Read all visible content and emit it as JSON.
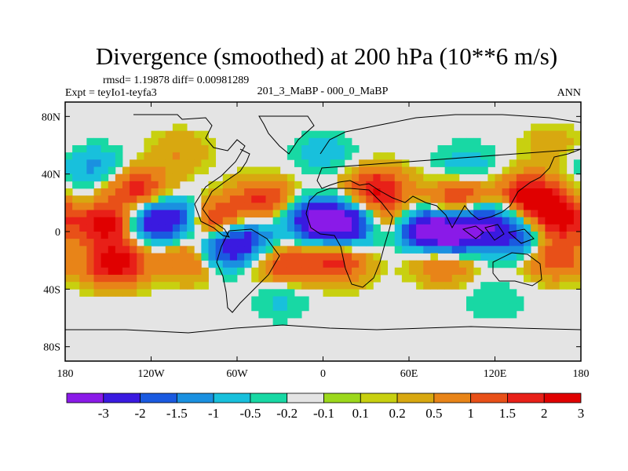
{
  "chart_data": {
    "type": "heatmap",
    "subtype": "filled-contour-map",
    "title": "Divergence (smoothed) at 200 hPa (10**6 m/s)",
    "stats_text": "rmsd= 1.19878 diff= 0.00981289",
    "left_label": "Expt = teyIo1-teyfa3",
    "center_label": "201_3_MaBP - 000_0_MaBP",
    "right_label": "ANN",
    "x_range": [
      -180,
      180
    ],
    "y_range": [
      -90,
      90
    ],
    "x_ticks": [
      {
        "value": -180,
        "label": "180"
      },
      {
        "value": -120,
        "label": "120W"
      },
      {
        "value": -60,
        "label": "60W"
      },
      {
        "value": 0,
        "label": "0"
      },
      {
        "value": 60,
        "label": "60E"
      },
      {
        "value": 120,
        "label": "120E"
      },
      {
        "value": 180,
        "label": "180"
      }
    ],
    "y_ticks": [
      {
        "value": 80,
        "label": "80N"
      },
      {
        "value": 40,
        "label": "40N"
      },
      {
        "value": 0,
        "label": "0"
      },
      {
        "value": -40,
        "label": "40S"
      },
      {
        "value": -80,
        "label": "80S"
      }
    ],
    "colorbar": {
      "levels": [
        {
          "value": -3,
          "label": "-3"
        },
        {
          "value": -2,
          "label": "-2"
        },
        {
          "value": -1.5,
          "label": "-1.5"
        },
        {
          "value": -1,
          "label": "-1"
        },
        {
          "value": -0.5,
          "label": "-0.5"
        },
        {
          "value": -0.2,
          "label": "-0.2"
        },
        {
          "value": -0.1,
          "label": "-0.1"
        },
        {
          "value": 0.1,
          "label": "0.1"
        },
        {
          "value": 0.2,
          "label": "0.2"
        },
        {
          "value": 0.5,
          "label": "0.5"
        },
        {
          "value": 1,
          "label": "1"
        },
        {
          "value": 1.5,
          "label": "1.5"
        },
        {
          "value": 2,
          "label": "2"
        },
        {
          "value": 3,
          "label": "3"
        }
      ],
      "colors": [
        "#8a1ae8",
        "#3a1ae0",
        "#1a5ae0",
        "#1a90e0",
        "#18c0dc",
        "#18d8a4",
        "#e4e4e4",
        "#9cd81c",
        "#c8d010",
        "#d8a810",
        "#e88418",
        "#e85018",
        "#e82018",
        "#e00000"
      ]
    },
    "features": [
      {
        "lon": -150,
        "lat": 5,
        "value": 2.5
      },
      {
        "lon": -145,
        "lat": -22,
        "value": 2.5
      },
      {
        "lon": -130,
        "lat": 30,
        "value": 1.8
      },
      {
        "lon": -118,
        "lat": 6,
        "value": -2.6
      },
      {
        "lon": -95,
        "lat": 10,
        "value": -1.8
      },
      {
        "lon": -78,
        "lat": 8,
        "value": 2.6
      },
      {
        "lon": -88,
        "lat": -18,
        "value": 2.2
      },
      {
        "lon": -75,
        "lat": -15,
        "value": -2.6
      },
      {
        "lon": -55,
        "lat": -5,
        "value": -2.2
      },
      {
        "lon": -42,
        "lat": 22,
        "value": 1.6
      },
      {
        "lon": -28,
        "lat": -22,
        "value": 1.4
      },
      {
        "lon": -5,
        "lat": 8,
        "value": -3.0
      },
      {
        "lon": 18,
        "lat": 5,
        "value": -3.0
      },
      {
        "lon": 10,
        "lat": -22,
        "value": 1.6
      },
      {
        "lon": 38,
        "lat": 30,
        "value": 2.0
      },
      {
        "lon": 45,
        "lat": 8,
        "value": 1.4
      },
      {
        "lon": 70,
        "lat": 2,
        "value": -3.0
      },
      {
        "lon": 92,
        "lat": -3,
        "value": -3.2
      },
      {
        "lon": 115,
        "lat": 8,
        "value": -2.2
      },
      {
        "lon": 135,
        "lat": -6,
        "value": -1.8
      },
      {
        "lon": 95,
        "lat": 22,
        "value": 1.8
      },
      {
        "lon": 145,
        "lat": 25,
        "value": 2.6
      },
      {
        "lon": 165,
        "lat": 8,
        "value": 2.2
      },
      {
        "lon": 160,
        "lat": -18,
        "value": 1.5
      },
      {
        "lon": 85,
        "lat": -20,
        "value": 1.4
      },
      {
        "lon": -160,
        "lat": 45,
        "value": -1.2
      },
      {
        "lon": 0,
        "lat": 55,
        "value": -0.8
      },
      {
        "lon": 100,
        "lat": 48,
        "value": -0.8
      },
      {
        "lon": -30,
        "lat": -48,
        "value": -0.6
      },
      {
        "lon": 120,
        "lat": -48,
        "value": -0.5
      },
      {
        "lon": -100,
        "lat": 55,
        "value": 0.5
      },
      {
        "lon": 160,
        "lat": 60,
        "value": 0.4
      }
    ]
  }
}
